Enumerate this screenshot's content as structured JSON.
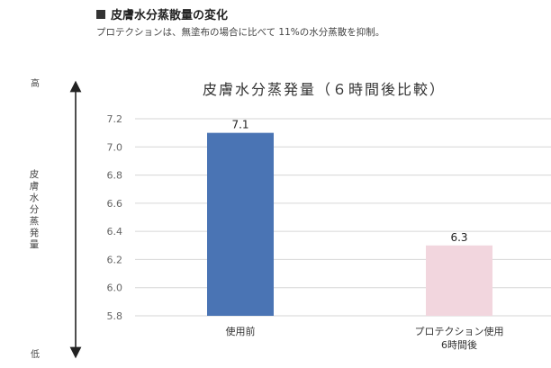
{
  "header": {
    "title": "皮膚水分蒸散量の変化",
    "description": "プロテクションは、無塗布の場合に比べて 11%の水分蒸散を抑制。"
  },
  "axis_side": {
    "high": "高",
    "low": "低",
    "label": "皮膚水分蒸発量"
  },
  "chart_data": {
    "type": "bar",
    "title": "皮膚水分蒸発量（６時間後比較）",
    "categories": [
      [
        "使用前"
      ],
      [
        "プロテクション使用",
        "6時間後"
      ]
    ],
    "values": [
      7.1,
      6.3
    ],
    "value_labels": [
      "7.1",
      "6.3"
    ],
    "bar_colors": [
      "#4a74b4",
      "#f2d6de"
    ],
    "ylim": [
      5.8,
      7.2
    ],
    "yticks": [
      "5.8",
      "6.0",
      "6.2",
      "6.4",
      "6.6",
      "6.8",
      "7.0",
      "7.2"
    ],
    "grid": true
  }
}
